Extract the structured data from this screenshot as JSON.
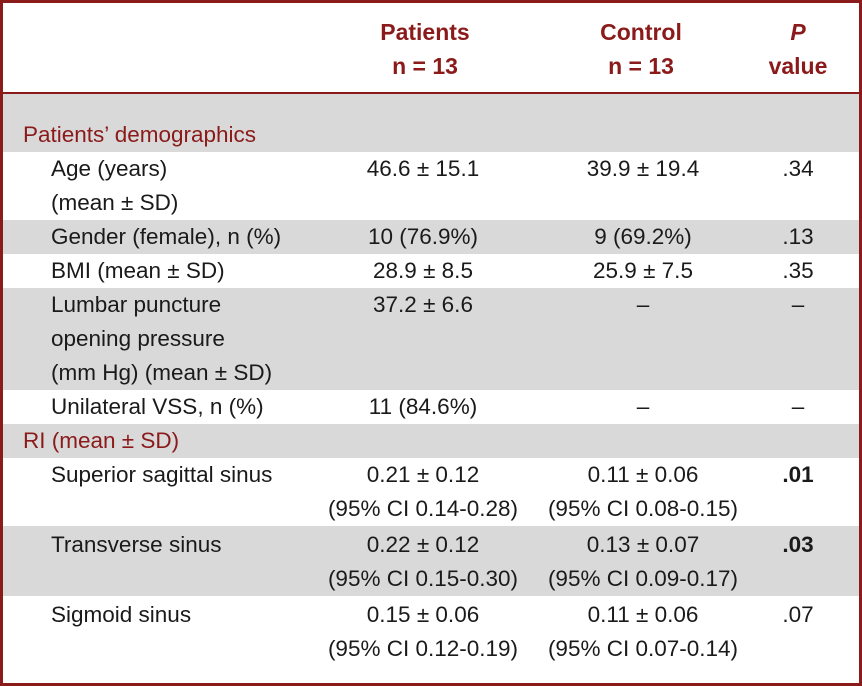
{
  "header": {
    "patients_line1": "Patients",
    "patients_line2": "n = 13",
    "control_line1": "Control",
    "control_line2": "n = 13",
    "p_line1": "P",
    "p_line2": "value"
  },
  "sections": {
    "demographics": "Patients’ demographics",
    "ri": "RI (mean ± SD)"
  },
  "rows": {
    "age": {
      "label1": "Age (years)",
      "label2": "(mean ± SD)",
      "patients": "46.6 ± 15.1",
      "control": "39.9 ± 19.4",
      "p": ".34"
    },
    "gender": {
      "label": "Gender (female), n (%)",
      "patients": "10 (76.9%)",
      "control": "9 (69.2%)",
      "p": ".13"
    },
    "bmi": {
      "label": "BMI (mean ± SD)",
      "patients": "28.9 ± 8.5",
      "control": "25.9 ± 7.5",
      "p": ".35"
    },
    "lp": {
      "label1": "Lumbar puncture",
      "label2": "opening pressure",
      "label3": "(mm Hg) (mean ± SD)",
      "patients": "37.2 ± 6.6",
      "control": "–",
      "p": "–"
    },
    "vss": {
      "label": "Unilateral VSS, n (%)",
      "patients": "11 (84.6%)",
      "control": "–",
      "p": "–"
    },
    "sss": {
      "label": "Superior sagittal sinus",
      "patients1": "0.21 ± 0.12",
      "patients2": "(95% CI 0.14-0.28)",
      "control1": "0.11 ± 0.06",
      "control2": "(95% CI 0.08-0.15)",
      "p": ".01"
    },
    "ts": {
      "label": "Transverse sinus",
      "patients1": "0.22 ± 0.12",
      "patients2": "(95% CI 0.15-0.30)",
      "control1": "0.13 ± 0.07",
      "control2": "(95% CI 0.09-0.17)",
      "p": ".03"
    },
    "sigmoid": {
      "label": "Sigmoid sinus",
      "patients1": "0.15 ± 0.06",
      "patients2": "(95% CI 0.12-0.19)",
      "control1": "0.11 ± 0.06",
      "control2": "(95% CI 0.07-0.14)",
      "p": ".07"
    }
  },
  "colors": {
    "accent": "#8b1a1a",
    "shade": "#d9d9d9"
  }
}
